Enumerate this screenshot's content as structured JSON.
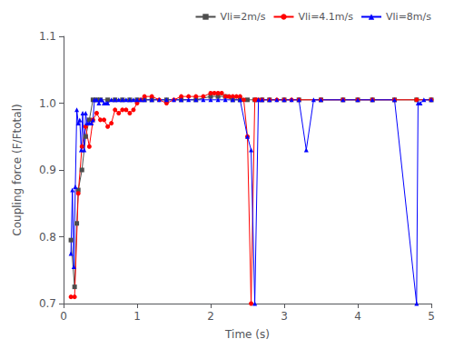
{
  "chart_data": {
    "type": "line",
    "xlabel": "Time (s)",
    "ylabel": "Coupling force (F/Ftotal)",
    "xlim": [
      0,
      5
    ],
    "ylim": [
      0.7,
      1.1
    ],
    "xticks": [
      0,
      1,
      2,
      3,
      4,
      5
    ],
    "yticks": [
      0.7,
      0.8,
      0.9,
      {
        "value": 1.0,
        "label": "1.0"
      },
      1.1
    ],
    "grid": false,
    "legend": "upper right",
    "series": [
      {
        "name": "Vli=2m/s",
        "color": "#4d4d4d",
        "marker": "square",
        "x": [
          0.1,
          0.15,
          0.18,
          0.2,
          0.25,
          0.3,
          0.35,
          0.4,
          0.45,
          0.5,
          0.6,
          0.7,
          0.8,
          0.9,
          1.0,
          1.1,
          1.2,
          1.4,
          1.6,
          1.8,
          2.0,
          2.1,
          2.2,
          2.3,
          2.4,
          2.5,
          2.6,
          2.7,
          2.8,
          3.0,
          3.2,
          3.5,
          3.8,
          4.0,
          4.2,
          4.5,
          4.8,
          5.0
        ],
        "values": [
          0.795,
          0.725,
          0.82,
          0.87,
          0.9,
          0.95,
          0.975,
          1.005,
          1.005,
          1.005,
          1.005,
          1.005,
          1.005,
          1.005,
          1.005,
          1.005,
          1.005,
          1.005,
          1.005,
          1.005,
          1.01,
          1.01,
          1.01,
          1.005,
          1.005,
          1.005,
          1.005,
          1.005,
          1.005,
          1.005,
          1.005,
          1.005,
          1.005,
          1.005,
          1.005,
          1.005,
          1.005,
          1.005
        ]
      },
      {
        "name": "Vli=4.1m/s",
        "color": "red",
        "marker": "circle",
        "x": [
          0.1,
          0.15,
          0.2,
          0.25,
          0.3,
          0.35,
          0.4,
          0.45,
          0.5,
          0.55,
          0.6,
          0.65,
          0.7,
          0.75,
          0.8,
          0.85,
          0.9,
          0.95,
          1.0,
          1.05,
          1.1,
          1.2,
          1.3,
          1.4,
          1.5,
          1.6,
          1.7,
          1.8,
          1.9,
          2.0,
          2.05,
          2.1,
          2.15,
          2.2,
          2.25,
          2.3,
          2.35,
          2.4,
          2.45,
          2.5,
          2.55,
          2.6,
          2.62,
          2.65,
          2.7,
          2.8,
          2.9,
          3.0,
          3.1,
          3.2,
          3.5,
          3.8,
          4.0,
          4.2,
          4.5,
          4.8,
          5.0
        ],
        "values": [
          0.71,
          0.71,
          0.865,
          0.935,
          0.965,
          0.935,
          0.975,
          0.985,
          0.975,
          0.975,
          0.965,
          0.97,
          0.99,
          0.985,
          0.99,
          0.99,
          0.985,
          0.99,
          1.0,
          1.005,
          1.01,
          1.01,
          1.005,
          1.0,
          1.005,
          1.01,
          1.01,
          1.01,
          1.01,
          1.015,
          1.015,
          1.015,
          1.015,
          1.01,
          1.01,
          1.01,
          1.01,
          1.01,
          1.005,
          0.95,
          0.7,
          1.005,
          1.005,
          1.005,
          1.005,
          1.005,
          1.005,
          1.005,
          1.005,
          1.005,
          1.005,
          1.005,
          1.005,
          1.005,
          1.005,
          1.005,
          1.005
        ]
      },
      {
        "name": "Vli=8m/s",
        "color": "blue",
        "marker": "triangle",
        "x": [
          0.1,
          0.12,
          0.14,
          0.16,
          0.18,
          0.2,
          0.22,
          0.24,
          0.26,
          0.28,
          0.3,
          0.32,
          0.35,
          0.38,
          0.4,
          0.42,
          0.45,
          0.48,
          0.5,
          0.52,
          0.55,
          0.58,
          0.6,
          0.65,
          0.7,
          0.75,
          0.8,
          0.85,
          0.9,
          0.95,
          1.0,
          1.05,
          1.1,
          1.2,
          1.3,
          1.4,
          1.5,
          1.6,
          1.7,
          1.8,
          1.9,
          2.0,
          2.1,
          2.2,
          2.3,
          2.4,
          2.5,
          2.55,
          2.6,
          2.65,
          2.7,
          2.8,
          2.9,
          3.0,
          3.1,
          3.2,
          3.3,
          3.4,
          3.5,
          3.8,
          4.0,
          4.2,
          4.5,
          4.8,
          4.82,
          4.85,
          4.9,
          5.0
        ],
        "values": [
          0.775,
          0.87,
          0.755,
          0.875,
          0.99,
          0.97,
          0.975,
          0.93,
          0.985,
          0.93,
          0.985,
          0.97,
          0.97,
          0.97,
          0.975,
          1.005,
          1.005,
          1.0,
          1.005,
          1.005,
          1.0,
          1.0,
          1.0,
          1.005,
          1.005,
          1.005,
          1.005,
          1.005,
          1.005,
          1.005,
          1.005,
          1.005,
          1.005,
          1.005,
          1.005,
          1.005,
          1.005,
          1.005,
          1.005,
          1.005,
          1.005,
          1.005,
          1.005,
          1.005,
          1.005,
          1.005,
          0.95,
          0.93,
          0.7,
          1.005,
          1.005,
          1.005,
          1.005,
          1.005,
          1.005,
          1.005,
          0.93,
          1.005,
          1.005,
          1.005,
          1.005,
          1.005,
          1.005,
          0.7,
          1.0,
          1.0,
          1.005,
          1.005
        ]
      }
    ]
  }
}
